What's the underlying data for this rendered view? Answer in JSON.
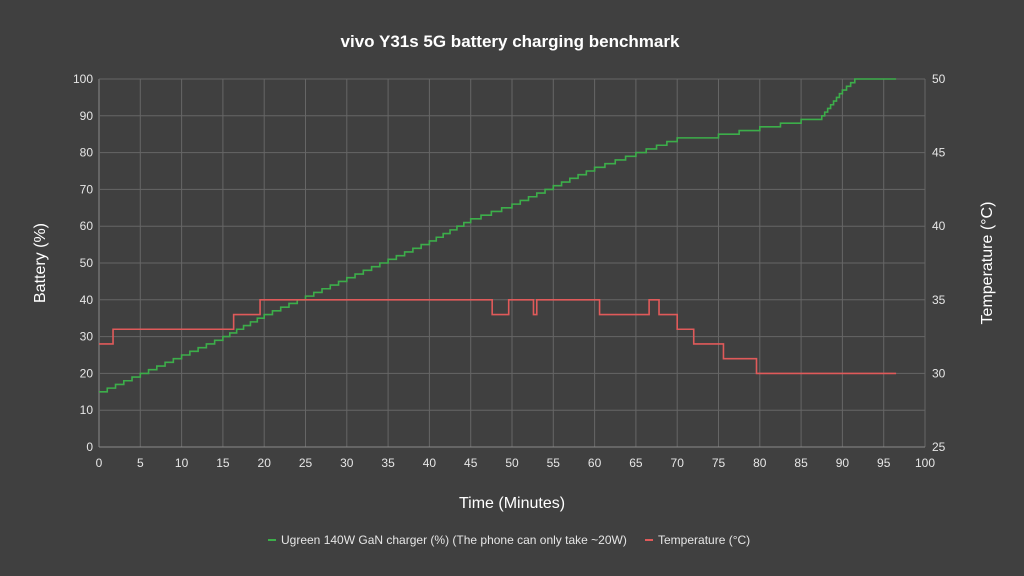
{
  "chart_data": {
    "type": "line",
    "title": "vivo Y31s 5G battery charging benchmark",
    "xlabel": "Time (Minutes)",
    "ylabel": "Battery (%)",
    "y2label": "Temperature (°C)",
    "xlim": [
      0,
      100
    ],
    "ylim": [
      0,
      100
    ],
    "y2lim": [
      25,
      50
    ],
    "x_ticks": [
      0,
      5,
      10,
      15,
      20,
      25,
      30,
      35,
      40,
      45,
      50,
      55,
      60,
      65,
      70,
      75,
      80,
      85,
      90,
      95,
      100
    ],
    "y_ticks": [
      0,
      10,
      20,
      30,
      40,
      50,
      60,
      70,
      80,
      90,
      100
    ],
    "y2_ticks": [
      25,
      30,
      35,
      40,
      45,
      50
    ],
    "grid": true,
    "legend_position": "bottom",
    "series": [
      {
        "name": "Ugreen 140W GaN charger (%) (The phone can only take ~20W)",
        "axis": "left",
        "color": "#3cae4a",
        "step": true,
        "points": [
          [
            0,
            15
          ],
          [
            5,
            20
          ],
          [
            10,
            25
          ],
          [
            15,
            30
          ],
          [
            20,
            36
          ],
          [
            25,
            41
          ],
          [
            30,
            46
          ],
          [
            35,
            51
          ],
          [
            40,
            56
          ],
          [
            45,
            62
          ],
          [
            50,
            66
          ],
          [
            55,
            71
          ],
          [
            60,
            76
          ],
          [
            65,
            80
          ],
          [
            70,
            84
          ],
          [
            75,
            85
          ],
          [
            80,
            87
          ],
          [
            85,
            89
          ],
          [
            87.5,
            90
          ],
          [
            90,
            97
          ],
          [
            91.5,
            100
          ],
          [
            96.5,
            100
          ]
        ]
      },
      {
        "name": "Temperature (°C)",
        "axis": "right",
        "color": "#e05a5a",
        "step": true,
        "points": [
          [
            0,
            32
          ],
          [
            1.7,
            33
          ],
          [
            16.3,
            34
          ],
          [
            19.5,
            35
          ],
          [
            47.6,
            34
          ],
          [
            49.6,
            35
          ],
          [
            52.6,
            34
          ],
          [
            53,
            35
          ],
          [
            60.6,
            34
          ],
          [
            66.6,
            35
          ],
          [
            67.8,
            34
          ],
          [
            70,
            33
          ],
          [
            72,
            32
          ],
          [
            75.6,
            31
          ],
          [
            79.6,
            30
          ],
          [
            96.5,
            30
          ]
        ]
      }
    ]
  }
}
